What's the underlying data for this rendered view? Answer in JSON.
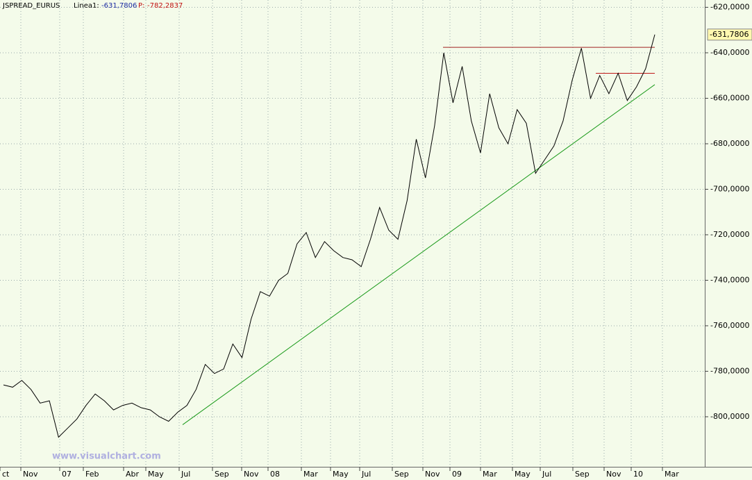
{
  "chart_data": {
    "type": "line",
    "header": {
      "symbol": "JSPREAD_EURUS",
      "line_label": "Linea1:",
      "line_value": "-631,7806",
      "p_label": "P:",
      "p_value": "-782,2837"
    },
    "watermark": "www.visualchart.com",
    "x_labels": [
      "ct",
      "Nov",
      "07",
      "Feb",
      "Abr",
      "May",
      "Jul",
      "Sep",
      "Nov",
      "08",
      "Mar",
      "May",
      "Jul",
      "Sep",
      "Nov",
      "09",
      "Mar",
      "May",
      "Jul",
      "Sep",
      "Nov",
      "10",
      "Mar"
    ],
    "series": [
      {
        "name": "JSPREAD_EURUS",
        "color": "#000000",
        "values": [
          -786,
          -787,
          -784,
          -788,
          -794,
          -793,
          -809,
          -805,
          -801,
          -795,
          -790,
          -793,
          -797,
          -795,
          -794,
          -796,
          -797,
          -800,
          -802,
          -798,
          -795,
          -788,
          -777,
          -781,
          -779,
          -768,
          -774,
          -757,
          -745,
          -747,
          -740,
          -737,
          -724,
          -719,
          -730,
          -723,
          -727,
          -730,
          -731,
          -734,
          -722,
          -708,
          -718,
          -722,
          -705,
          -678,
          -695,
          -672,
          -640,
          -662,
          -646,
          -670,
          -684,
          -658,
          -673,
          -680,
          -665,
          -671,
          -693,
          -687,
          -681,
          -670,
          -652,
          -638,
          -660,
          -650,
          -658,
          -649,
          -661,
          -655,
          -647,
          -632
        ]
      }
    ],
    "ylim": [
      -822,
      -616.8
    ],
    "yticks": [
      {
        "value": -620,
        "label": "-620,0000"
      },
      {
        "value": -640,
        "label": "-640,0000"
      },
      {
        "value": -660,
        "label": "-660,0000"
      },
      {
        "value": -680,
        "label": "-680,0000"
      },
      {
        "value": -700,
        "label": "-700,0000"
      },
      {
        "value": -720,
        "label": "-720,0000"
      },
      {
        "value": -740,
        "label": "-740,0000"
      },
      {
        "value": -760,
        "label": "-760,0000"
      },
      {
        "value": -780,
        "label": "-780,0000"
      },
      {
        "value": -800,
        "label": "-800,0000"
      }
    ],
    "grid": true,
    "trend_line": {
      "color": "#1a9a1a",
      "values": [
        -803.5,
        -654
      ]
    },
    "resistance_lines": [
      {
        "color": "#a02020",
        "value": -637.6
      },
      {
        "color": "#c01818",
        "value": -649
      }
    ]
  }
}
